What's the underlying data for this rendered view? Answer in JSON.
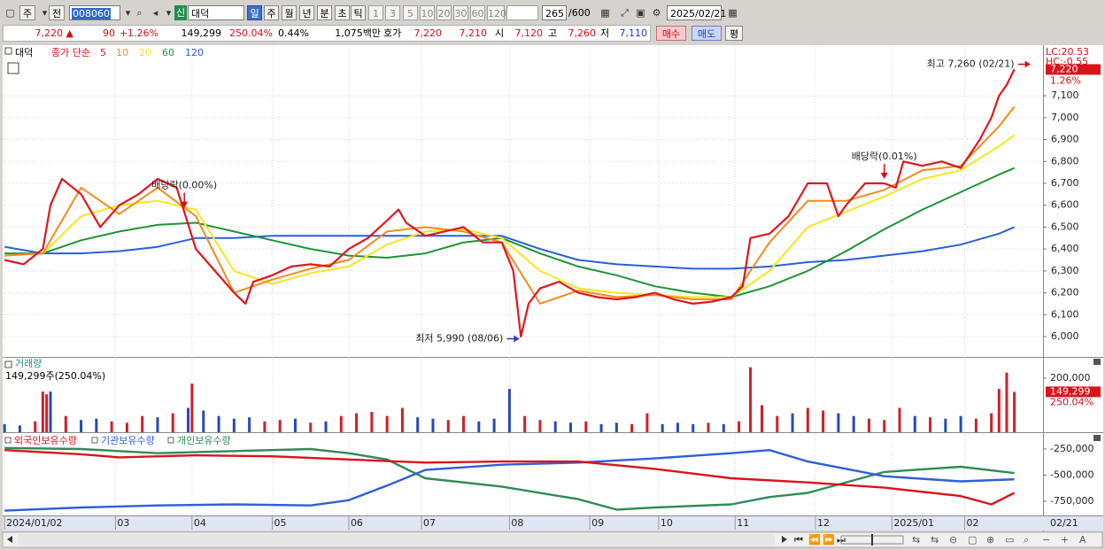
{
  "toolbar": [
    "주",
    "전",
    "008060",
    "신",
    "대덕",
    "일",
    "주",
    "월",
    "년",
    "분",
    "초",
    "틱",
    "1",
    "3",
    "5",
    "10",
    "20",
    "30",
    "60",
    "120",
    "265",
    "/600",
    "2025/02/21"
  ],
  "quote": [
    "7,220 ▲",
    "90",
    "+1.26%",
    "149,299",
    "250.04%",
    "0.44%",
    "1,075백만",
    "호가",
    "7,220",
    "7,210",
    "시",
    "7,120",
    "고",
    "7,260",
    "저",
    "7,110",
    "매수",
    "매도",
    "평"
  ],
  "chart_data": [
    {
      "type": "line",
      "title": "대덕",
      "legend_label": "종가 단순",
      "xlim": [
        -0.5,
        271.5
      ],
      "ylim": [
        5907,
        7327
      ],
      "yticks": [
        {
          "value": 6000,
          "label": "6,000"
        },
        {
          "value": 6100,
          "label": "6,100"
        },
        {
          "value": 6200,
          "label": "6,200"
        },
        {
          "value": 6300,
          "label": "6,300"
        },
        {
          "value": 6400,
          "label": "6,400"
        },
        {
          "value": 6500,
          "label": "6,500"
        },
        {
          "value": 6600,
          "label": "6,600"
        },
        {
          "value": 6700,
          "label": "6,700"
        },
        {
          "value": 6800,
          "label": "6,800"
        },
        {
          "value": 6900,
          "label": "6,900"
        },
        {
          "value": 7000,
          "label": "7,000"
        },
        {
          "value": 7100,
          "label": "7,100"
        }
      ],
      "grid": true,
      "lc_label": "LC:20.53",
      "hc_label": "HC:-0.55",
      "last": {
        "value": 7220,
        "label": "7,220"
      },
      "change_label": "1.26%",
      "series": [
        {
          "name": "5",
          "color": "#e0161e",
          "x": [
            0,
            5,
            10,
            12,
            15,
            20,
            25,
            30,
            35,
            40,
            45,
            50,
            55,
            60,
            63,
            65,
            70,
            75,
            80,
            85,
            90,
            95,
            100,
            103,
            105,
            110,
            115,
            120,
            125,
            130,
            133,
            135,
            137,
            140,
            145,
            150,
            155,
            160,
            165,
            170,
            175,
            180,
            185,
            190,
            193,
            195,
            200,
            205,
            210,
            215,
            218,
            220,
            225,
            230,
            233,
            235,
            240,
            245,
            250,
            255,
            258,
            260,
            262,
            264
          ],
          "values": [
            6350,
            6330,
            6400,
            6600,
            6720,
            6650,
            6500,
            6600,
            6650,
            6720,
            6680,
            6400,
            6300,
            6200,
            6150,
            6250,
            6280,
            6320,
            6330,
            6320,
            6400,
            6450,
            6530,
            6580,
            6520,
            6460,
            6480,
            6500,
            6430,
            6430,
            6300,
            6000,
            6150,
            6220,
            6250,
            6200,
            6180,
            6170,
            6180,
            6200,
            6170,
            6150,
            6160,
            6180,
            6230,
            6450,
            6470,
            6550,
            6700,
            6700,
            6550,
            6600,
            6700,
            6700,
            6680,
            6800,
            6780,
            6800,
            6770,
            6900,
            7000,
            7100,
            7150,
            7220
          ]
        },
        {
          "name": "10",
          "color": "#f08c1e",
          "x": [
            0,
            10,
            20,
            30,
            40,
            50,
            60,
            70,
            80,
            90,
            100,
            110,
            120,
            130,
            140,
            150,
            160,
            170,
            180,
            190,
            200,
            210,
            220,
            230,
            240,
            250,
            260,
            264
          ],
          "values": [
            6370,
            6380,
            6680,
            6560,
            6680,
            6550,
            6200,
            6260,
            6310,
            6350,
            6480,
            6500,
            6480,
            6430,
            6150,
            6210,
            6180,
            6190,
            6170,
            6170,
            6430,
            6620,
            6620,
            6670,
            6760,
            6780,
            6960,
            7050
          ]
        },
        {
          "name": "20",
          "color": "#f5e61e",
          "x": [
            0,
            10,
            20,
            30,
            40,
            50,
            60,
            70,
            80,
            90,
            100,
            110,
            120,
            130,
            140,
            150,
            160,
            170,
            180,
            190,
            200,
            210,
            220,
            230,
            240,
            250,
            260,
            264
          ],
          "values": [
            6370,
            6380,
            6550,
            6600,
            6620,
            6580,
            6300,
            6240,
            6290,
            6320,
            6420,
            6480,
            6490,
            6450,
            6300,
            6220,
            6200,
            6190,
            6180,
            6180,
            6300,
            6500,
            6570,
            6640,
            6720,
            6760,
            6870,
            6920
          ]
        },
        {
          "name": "60",
          "color": "#1e9437",
          "x": [
            0,
            10,
            20,
            30,
            40,
            50,
            60,
            70,
            80,
            90,
            100,
            110,
            120,
            130,
            140,
            150,
            160,
            170,
            180,
            190,
            200,
            210,
            220,
            230,
            240,
            250,
            260,
            264
          ],
          "values": [
            6380,
            6380,
            6440,
            6480,
            6510,
            6520,
            6480,
            6440,
            6400,
            6370,
            6360,
            6380,
            6430,
            6450,
            6380,
            6320,
            6280,
            6230,
            6200,
            6180,
            6230,
            6300,
            6390,
            6490,
            6580,
            6660,
            6740,
            6770
          ]
        },
        {
          "name": "120",
          "color": "#2a5fd6",
          "x": [
            0,
            10,
            20,
            30,
            40,
            50,
            60,
            70,
            80,
            90,
            100,
            110,
            120,
            130,
            140,
            150,
            160,
            170,
            180,
            190,
            200,
            210,
            220,
            230,
            240,
            250,
            260,
            264
          ],
          "values": [
            6410,
            6380,
            6380,
            6390,
            6410,
            6450,
            6450,
            6460,
            6460,
            6460,
            6460,
            6460,
            6460,
            6460,
            6400,
            6350,
            6330,
            6320,
            6310,
            6310,
            6320,
            6340,
            6350,
            6370,
            6390,
            6420,
            6470,
            6500
          ]
        }
      ],
      "annotations": [
        {
          "text": "최고 7,260 (02/21)",
          "x": 264,
          "y": 7260
        },
        {
          "text": "최저 5,990 (08/06)",
          "x": 135,
          "y": 5990
        },
        {
          "text": "배당락(0.00%)",
          "x": 47
        },
        {
          "text": "배당락(0.01%)",
          "x": 230
        }
      ]
    },
    {
      "type": "bar",
      "title": "거래량",
      "subtitle": "149,299주(250.04%)",
      "xlim": [
        -0.5,
        271.5
      ],
      "ylim": [
        0,
        275000
      ],
      "yticks": [
        {
          "value": 200000,
          "label": "200,000"
        }
      ],
      "last": {
        "value": 149299,
        "label": "149,299"
      },
      "ratio_label": "250.04%",
      "x": [
        0,
        4,
        8,
        10,
        11,
        12,
        16,
        20,
        24,
        28,
        32,
        36,
        40,
        44,
        48,
        49,
        52,
        56,
        60,
        64,
        68,
        72,
        76,
        80,
        84,
        88,
        92,
        96,
        100,
        104,
        108,
        112,
        116,
        120,
        124,
        128,
        132,
        136,
        140,
        144,
        148,
        152,
        156,
        160,
        164,
        168,
        172,
        176,
        180,
        184,
        188,
        192,
        195,
        198,
        202,
        206,
        210,
        214,
        218,
        222,
        226,
        230,
        234,
        238,
        242,
        246,
        250,
        254,
        258,
        260,
        262,
        264
      ],
      "values": [
        30000,
        25000,
        40000,
        150000,
        140000,
        150000,
        60000,
        45000,
        50000,
        40000,
        35000,
        60000,
        55000,
        70000,
        90000,
        180000,
        80000,
        60000,
        50000,
        55000,
        40000,
        45000,
        50000,
        35000,
        40000,
        60000,
        70000,
        75000,
        60000,
        90000,
        55000,
        50000,
        45000,
        60000,
        40000,
        50000,
        160000,
        60000,
        45000,
        40000,
        35000,
        40000,
        30000,
        35000,
        30000,
        70000,
        30000,
        35000,
        30000,
        35000,
        30000,
        40000,
        240000,
        100000,
        60000,
        70000,
        90000,
        80000,
        70000,
        60000,
        50000,
        45000,
        90000,
        60000,
        55000,
        50000,
        60000,
        50000,
        70000,
        160000,
        220000,
        149299
      ],
      "colors": [
        "#2949b8",
        "#2949b8",
        "#d0202a",
        "#d0202a",
        "#d0202a",
        "#2949b8",
        "#d0202a",
        "#2949b8",
        "#2949b8",
        "#d0202a",
        "#d0202a",
        "#d0202a",
        "#2949b8",
        "#d0202a",
        "#2949b8",
        "#d0202a",
        "#2949b8",
        "#2949b8",
        "#2949b8",
        "#2949b8",
        "#d0202a",
        "#d0202a",
        "#2949b8",
        "#d0202a",
        "#2949b8",
        "#d0202a",
        "#d0202a",
        "#d0202a",
        "#d0202a",
        "#d0202a",
        "#2949b8",
        "#2949b8",
        "#d0202a",
        "#d0202a",
        "#2949b8",
        "#2949b8",
        "#2949b8",
        "#d0202a",
        "#d0202a",
        "#2949b8",
        "#2949b8",
        "#d0202a",
        "#2949b8",
        "#2949b8",
        "#d0202a",
        "#d0202a",
        "#2949b8",
        "#2949b8",
        "#2949b8",
        "#d0202a",
        "#2949b8",
        "#d0202a",
        "#d0202a",
        "#d0202a",
        "#d0202a",
        "#2949b8",
        "#d0202a",
        "#d0202a",
        "#2949b8",
        "#2949b8",
        "#d0202a",
        "#d0202a",
        "#d0202a",
        "#2949b8",
        "#d0202a",
        "#2949b8",
        "#2949b8",
        "#d0202a",
        "#d0202a",
        "#d0202a",
        "#d0202a",
        "#d0202a"
      ]
    },
    {
      "type": "line",
      "xlim": [
        -0.5,
        271.5
      ],
      "ylim": [
        -886000,
        -106000
      ],
      "yticks": [
        {
          "value": -250000,
          "label": "-250,000"
        },
        {
          "value": -500000,
          "label": "-500,000"
        },
        {
          "value": -750000,
          "label": "-750,000"
        }
      ],
      "xticks": [
        {
          "value": 0,
          "label": "2024/01/02"
        },
        {
          "value": 29,
          "label": "03"
        },
        {
          "value": 49,
          "label": "04"
        },
        {
          "value": 70,
          "label": "05"
        },
        {
          "value": 90,
          "label": "06"
        },
        {
          "value": 109,
          "label": "07"
        },
        {
          "value": 132,
          "label": "08"
        },
        {
          "value": 153,
          "label": "09"
        },
        {
          "value": 171,
          "label": "10"
        },
        {
          "value": 191,
          "label": "11"
        },
        {
          "value": 212,
          "label": "12"
        },
        {
          "value": 232,
          "label": "2025/01"
        },
        {
          "value": 251,
          "label": "02"
        }
      ],
      "last_x_label": "02/21",
      "series": [
        {
          "name": "외국인보유수량",
          "color": "#d8141c",
          "x": [
            0,
            20,
            30,
            50,
            70,
            90,
            110,
            130,
            150,
            170,
            190,
            210,
            230,
            250,
            258,
            264
          ],
          "values": [
            -260000,
            -300000,
            -330000,
            -310000,
            -320000,
            -350000,
            -380000,
            -370000,
            -370000,
            -440000,
            -530000,
            -570000,
            -620000,
            -700000,
            -780000,
            -670000
          ]
        },
        {
          "name": "기관보유수량",
          "color": "#2f5fd8",
          "x": [
            0,
            20,
            40,
            60,
            80,
            90,
            100,
            110,
            130,
            150,
            170,
            190,
            200,
            210,
            230,
            250,
            264
          ],
          "values": [
            -840000,
            -810000,
            -790000,
            -780000,
            -790000,
            -740000,
            -600000,
            -450000,
            -400000,
            -380000,
            -340000,
            -290000,
            -260000,
            -370000,
            -510000,
            -560000,
            -540000
          ]
        },
        {
          "name": "개인보유수량",
          "color": "#2e8b57",
          "x": [
            0,
            20,
            40,
            60,
            80,
            90,
            100,
            110,
            130,
            150,
            160,
            170,
            190,
            200,
            210,
            230,
            250,
            264
          ],
          "values": [
            -240000,
            -250000,
            -290000,
            -270000,
            -250000,
            -290000,
            -350000,
            -530000,
            -610000,
            -730000,
            -830000,
            -810000,
            -780000,
            -710000,
            -670000,
            -470000,
            -420000,
            -480000
          ]
        }
      ]
    }
  ]
}
